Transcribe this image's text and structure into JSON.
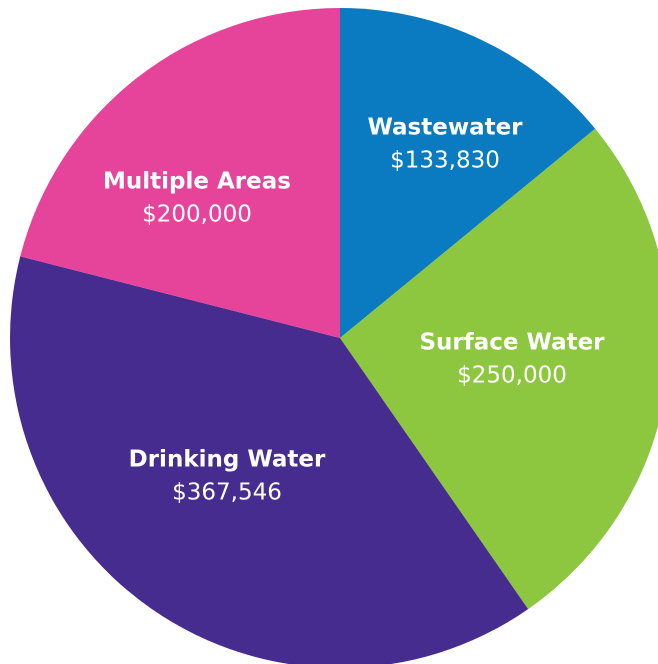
{
  "chart_data": {
    "type": "pie",
    "categories": [
      "Wastewater",
      "Surface Water",
      "Drinking Water",
      "Multiple Areas"
    ],
    "values": [
      133830,
      250000,
      367546,
      200000
    ],
    "value_labels": [
      "$133,830",
      "$250,000",
      "$367,546",
      "$200,000"
    ],
    "colors": [
      "#0a7bc1",
      "#8dc63f",
      "#472c8f",
      "#e6449a"
    ]
  }
}
